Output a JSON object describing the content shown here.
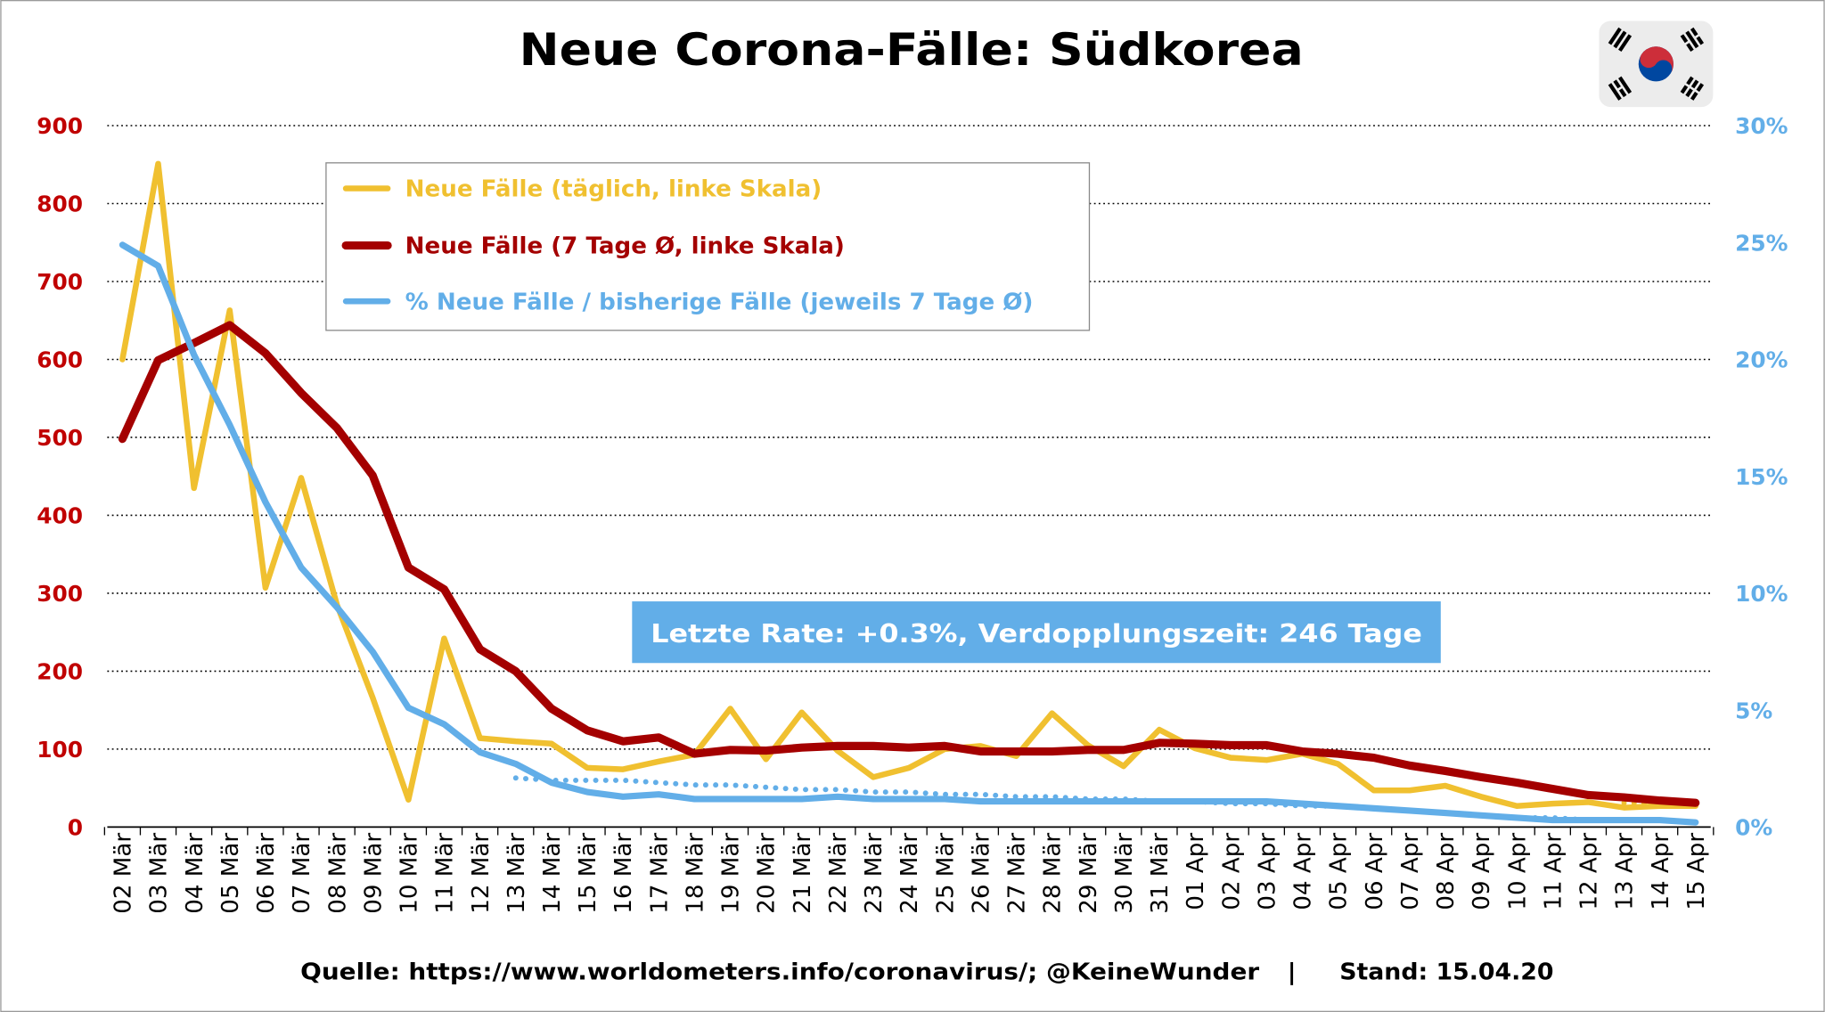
{
  "flag_icon": "south-korea-flag-icon",
  "chart_data": {
    "type": "line",
    "title": "Neue Corona-Fälle: Südkorea",
    "xlabel": "",
    "grid": true,
    "legend": {
      "placement": "top-left"
    },
    "categories": [
      "02 Mär",
      "03 Mär",
      "04 Mär",
      "05 Mär",
      "06 Mär",
      "07 Mär",
      "08 Mär",
      "09 Mär",
      "10 Mär",
      "11 Mär",
      "12 Mär",
      "13 Mär",
      "14 Mär",
      "15 Mär",
      "16 Mär",
      "17 Mär",
      "18 Mär",
      "19 Mär",
      "20 Mär",
      "21 Mär",
      "22 Mär",
      "23 Mär",
      "24 Mär",
      "25 Mär",
      "26 Mär",
      "27 Mär",
      "28 Mär",
      "29 Mär",
      "30 Mär",
      "31 Mär",
      "01 Apr",
      "02 Apr",
      "03 Apr",
      "04 Apr",
      "05 Apr",
      "06 Apr",
      "07 Apr",
      "08 Apr",
      "09 Apr",
      "10 Apr",
      "11 Apr",
      "12 Apr",
      "13 Apr",
      "14 Apr",
      "15 Apr"
    ],
    "y_left": {
      "ylim": [
        0,
        900
      ],
      "ticks": [
        0,
        100,
        200,
        300,
        400,
        500,
        600,
        700,
        800,
        900
      ],
      "color": "#c00000"
    },
    "y_right": {
      "ylim": [
        0,
        30
      ],
      "ticks": [
        0,
        5,
        10,
        15,
        20,
        25,
        30
      ],
      "unit": "%",
      "color": "#62aee8"
    },
    "series": [
      {
        "name": "Neue Fälle (täglich, linke Skala)",
        "axis": "left",
        "color": "#f0c030",
        "style": "solid",
        "values": [
          600,
          851,
          435,
          663,
          307,
          448,
          285,
          166,
          35,
          242,
          114,
          110,
          107,
          76,
          74,
          84,
          93,
          152,
          87,
          147,
          98,
          64,
          76,
          100,
          104,
          91,
          146,
          105,
          78,
          125,
          101,
          89,
          86,
          94,
          81,
          47,
          47,
          53,
          39,
          27,
          30,
          32,
          25,
          27,
          27
        ]
      },
      {
        "name": "Neue Fälle (7 Tage Ø, linke Skala)",
        "axis": "left",
        "color": "#a40000",
        "style": "solid",
        "values": [
          498,
          599,
          621,
          644,
          608,
          557,
          512,
          451,
          333,
          305,
          228,
          200,
          152,
          124,
          110,
          115,
          94,
          99,
          98,
          102,
          104,
          104,
          102,
          104,
          97,
          97,
          97,
          99,
          99,
          108,
          107,
          105,
          105,
          97,
          94,
          89,
          79,
          72,
          64,
          57,
          49,
          41,
          38,
          34,
          31
        ]
      },
      {
        "name": "% Neue Fälle / bisherige Fälle (jeweils 7 Tage Ø)",
        "axis": "right",
        "color": "#62aee8",
        "style": "solid",
        "values": [
          24.9,
          24.0,
          20.2,
          17.2,
          13.9,
          11.1,
          9.4,
          7.5,
          5.1,
          4.4,
          3.2,
          2.7,
          1.9,
          1.5,
          1.3,
          1.4,
          1.2,
          1.2,
          1.2,
          1.2,
          1.3,
          1.2,
          1.2,
          1.2,
          1.1,
          1.1,
          1.1,
          1.1,
          1.1,
          1.1,
          1.1,
          1.1,
          1.1,
          1.0,
          0.9,
          0.8,
          0.7,
          0.6,
          0.5,
          0.4,
          0.3,
          0.3,
          0.3,
          0.3,
          0.2
        ]
      },
      {
        "axis": "right",
        "color": "#62aee8",
        "style": "dotted",
        "values": [
          null,
          null,
          null,
          null,
          null,
          null,
          null,
          null,
          null,
          null,
          null,
          2.1,
          2.0,
          2.0,
          2.0,
          1.9,
          1.8,
          1.8,
          1.7,
          1.6,
          1.6,
          1.5,
          1.5,
          1.4,
          1.4,
          1.3,
          1.3,
          1.2,
          1.2,
          1.1,
          1.1,
          1.0,
          1.0,
          0.9,
          0.9,
          0.8,
          0.7,
          0.6,
          0.5,
          0.4,
          0.4,
          0.3,
          0.3,
          0.3,
          0.2
        ]
      },
      {
        "axis": "left",
        "color": "#f0c030",
        "style": "dotted",
        "values": [
          null,
          null,
          null,
          null,
          null,
          null,
          null,
          null,
          null,
          null,
          null,
          null,
          null,
          null,
          null,
          null,
          null,
          null,
          null,
          null,
          null,
          null,
          null,
          null,
          null,
          null,
          null,
          null,
          null,
          null,
          null,
          null,
          null,
          null,
          null,
          null,
          null,
          null,
          null,
          null,
          null,
          null,
          31,
          30,
          29
        ]
      }
    ],
    "annotations": [
      {
        "text": "Letzte Rate: +0.3%, Verdopplungszeit: 246 Tage",
        "background": "#62aee8"
      }
    ]
  },
  "footer": {
    "source": "Quelle: https://www.worldometers.info/coronavirus/; @KeineWunder",
    "separator": "|",
    "date": "Stand: 15.04.20"
  }
}
